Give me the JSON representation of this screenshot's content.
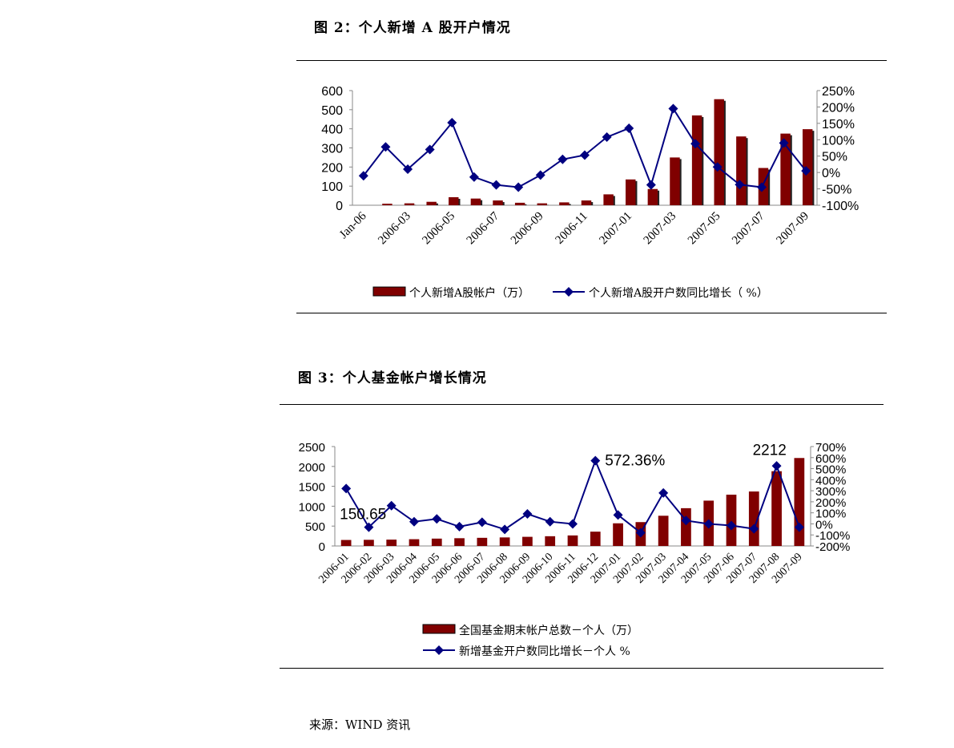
{
  "source": "来源：WIND 资讯",
  "chart_data": [
    {
      "type": "bar+line",
      "title": "图 2：个人新增 A 股开户情况",
      "categories": [
        "Jan-06",
        "2006-02",
        "2006-03",
        "2006-04",
        "2006-05",
        "2006-06",
        "2006-07",
        "2006-08",
        "2006-09",
        "2006-10",
        "2006-11",
        "2006-12",
        "2007-01",
        "2007-02",
        "2007-03",
        "2007-04",
        "2007-05",
        "2007-06",
        "2007-07",
        "2007-08",
        "2007-09"
      ],
      "tick_labels": [
        "Jan-06",
        "2006-03",
        "2006-05",
        "2006-07",
        "2006-09",
        "2006-11",
        "2007-01",
        "2007-03",
        "2007-05",
        "2007-07",
        "2007-09"
      ],
      "series": [
        {
          "name": "个人新增A股帐户（万）",
          "type": "bar",
          "axis": "left",
          "values": [
            0,
            8,
            10,
            18,
            42,
            35,
            25,
            13,
            10,
            15,
            25,
            57,
            135,
            85,
            250,
            470,
            555,
            360,
            195,
            375,
            398
          ]
        },
        {
          "name": "个人新增A股开户数同比增长（ %）",
          "type": "line",
          "axis": "right",
          "values": [
            -10,
            78,
            10,
            70,
            152,
            -14,
            -38,
            -45,
            -8,
            40,
            53,
            108,
            135,
            -38,
            195,
            88,
            17,
            -37,
            -45,
            90,
            5
          ]
        }
      ],
      "ylim_left": [
        0,
        600
      ],
      "yticks_left": [
        "0",
        "100",
        "200",
        "300",
        "400",
        "500",
        "600"
      ],
      "ylim_right": [
        -100,
        250
      ],
      "yticks_right": [
        "-100%",
        "-50%",
        "0%",
        "50%",
        "100%",
        "150%",
        "200%",
        "250%"
      ],
      "annotations": []
    },
    {
      "type": "bar+line",
      "title": "图 3：个人基金帐户增长情况",
      "categories": [
        "2006-01",
        "2006-02",
        "2006-03",
        "2006-04",
        "2006-05",
        "2006-06",
        "2006-07",
        "2006-08",
        "2006-09",
        "2006-10",
        "2006-11",
        "2006-12",
        "2007-01",
        "2007-02",
        "2007-03",
        "2007-04",
        "2007-05",
        "2007-06",
        "2007-07",
        "2007-08",
        "2007-09"
      ],
      "tick_labels": [
        "2006-01",
        "2006-02",
        "2006-03",
        "2006-04",
        "2006-05",
        "2006-06",
        "2006-07",
        "2006-08",
        "2006-09",
        "2006-10",
        "2006-11",
        "2006-12",
        "2007-01",
        "2007-02",
        "2007-03",
        "2007-04",
        "2007-05",
        "2007-06",
        "2007-07",
        "2007-08",
        "2007-09"
      ],
      "series": [
        {
          "name": "全国基金期末帐户总数－个人（万）",
          "type": "bar",
          "axis": "left",
          "values": [
            150.65,
            155,
            160,
            170,
            185,
            195,
            205,
            215,
            230,
            245,
            265,
            360,
            570,
            600,
            760,
            950,
            1140,
            1290,
            1370,
            1880,
            2212
          ]
        },
        {
          "name": "新增基金开户数同比增长－个人 %",
          "type": "line",
          "axis": "right",
          "values": [
            320,
            -30,
            165,
            20,
            45,
            -25,
            15,
            -50,
            90,
            20,
            0,
            572.36,
            80,
            -80,
            280,
            30,
            0,
            -15,
            -45,
            525,
            -30
          ]
        }
      ],
      "ylim_left": [
        0,
        2500
      ],
      "yticks_left": [
        "0",
        "500",
        "1000",
        "1500",
        "2000",
        "2500"
      ],
      "ylim_right": [
        -200,
        700
      ],
      "yticks_right": [
        "-200%",
        "-100%",
        "0%",
        "100%",
        "200%",
        "300%",
        "400%",
        "500%",
        "600%",
        "700%"
      ],
      "annotations": [
        "150.65",
        "572.36%",
        "2212"
      ]
    }
  ]
}
